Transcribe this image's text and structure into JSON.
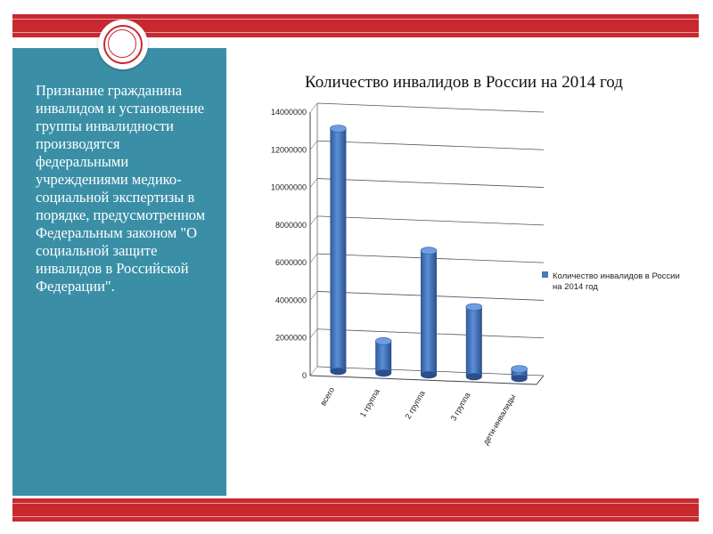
{
  "left_panel": {
    "text": "Признание гражданина инвалидом и установление группы инвалидности производятся федеральными учреждениями медико-социальной экспертизы в порядке, предусмотренном Федеральным законом \"О социальной защите инвалидов в Российской Федерации\"."
  },
  "colors": {
    "band": "#c8292f",
    "panel": "#3a8fa7",
    "bar": "#4a78bf"
  },
  "chart_data": {
    "type": "bar",
    "title": "Количество инвалидов в России на 2014 год",
    "categories": [
      "всего",
      "1 группа",
      "2 группа",
      "3 группа",
      "дети-инвалиды"
    ],
    "series": [
      {
        "name": "Количество инвалидов в России на 2014 год",
        "values": [
          12900000,
          1700000,
          6600000,
          3700000,
          500000
        ]
      }
    ],
    "ylim": [
      0,
      14000000
    ],
    "yticks": [
      "0",
      "2000000",
      "4000000",
      "6000000",
      "8000000",
      "10000000",
      "12000000",
      "14000000"
    ],
    "grid": true,
    "legend": "right",
    "bar_style": "3d-cylinder"
  }
}
